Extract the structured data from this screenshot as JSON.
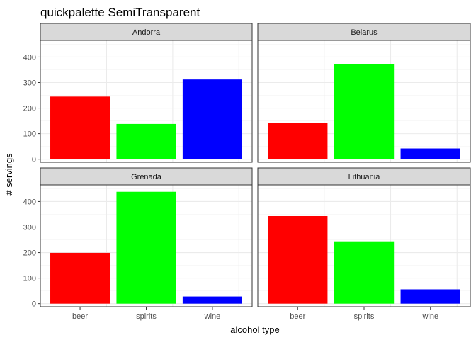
{
  "chart_data": {
    "type": "bar",
    "title": "quickpalette SemiTransparent",
    "xlabel": "alcohol type",
    "ylabel": "# servings",
    "categories": [
      "beer",
      "spirits",
      "wine"
    ],
    "category_colors": [
      "#FF0000",
      "#00FF00",
      "#0000FF"
    ],
    "y_ticks": [
      0,
      100,
      200,
      300,
      400
    ],
    "facets_share_y": "by-row",
    "grid": true,
    "legend": "none",
    "facets": [
      {
        "name": "Andorra",
        "ylim": [
          -12,
          465
        ],
        "values": [
          245,
          138,
          312
        ]
      },
      {
        "name": "Belarus",
        "ylim": [
          -12,
          465
        ],
        "values": [
          142,
          373,
          42
        ]
      },
      {
        "name": "Grenada",
        "ylim": [
          -12,
          465
        ],
        "values": [
          199,
          438,
          28
        ]
      },
      {
        "name": "Lithuania",
        "ylim": [
          -12,
          465
        ],
        "values": [
          343,
          244,
          56
        ]
      }
    ]
  }
}
